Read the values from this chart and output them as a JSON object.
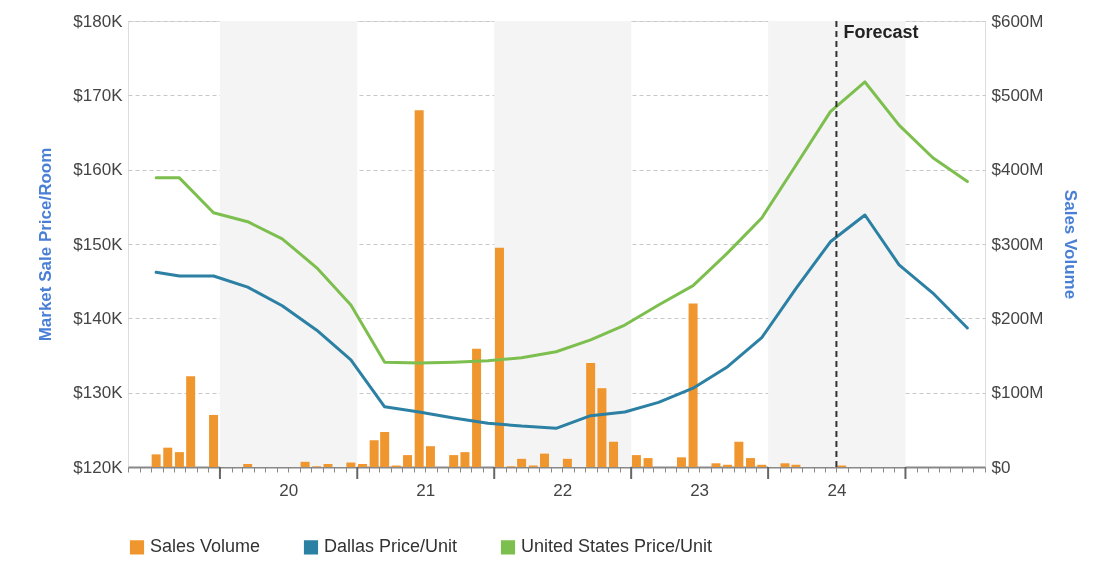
{
  "chart_data": {
    "type": "line",
    "ylabel": "Market Sale Price/Room",
    "y2label": "Sales Volume",
    "series": [
      {
        "name": "Sales Volume",
        "type": "bar",
        "axis": "y2",
        "color": "#f0962e",
        "x": [
          "2019-07-15",
          "2019-08-15",
          "2019-09-15",
          "2019-10-15",
          "2019-12-15",
          "2020-03-15",
          "2020-08-15",
          "2020-09-15",
          "2020-10-15",
          "2020-12-15",
          "2021-01-15",
          "2021-02-15",
          "2021-03-15",
          "2021-04-15",
          "2021-05-15",
          "2021-06-15",
          "2021-07-15",
          "2021-09-15",
          "2021-10-15",
          "2021-11-15",
          "2022-01-15",
          "2022-02-15",
          "2022-03-15",
          "2022-04-15",
          "2022-05-15",
          "2022-07-15",
          "2022-09-15",
          "2022-10-15",
          "2022-11-15",
          "2023-01-15",
          "2023-02-15",
          "2023-05-15",
          "2023-06-15",
          "2023-08-15",
          "2023-09-15",
          "2023-10-15",
          "2023-11-15",
          "2023-12-15",
          "2024-02-15",
          "2024-03-15",
          "2024-07-15"
        ],
        "values": [
          17,
          26,
          20,
          122,
          70,
          4,
          7,
          1,
          4,
          6,
          4,
          36,
          47,
          2,
          16,
          480,
          28,
          16,
          20,
          159,
          295,
          1,
          11,
          2,
          18,
          11,
          140,
          106,
          34,
          16,
          12,
          13,
          220,
          5,
          3,
          34,
          12,
          3,
          5,
          3,
          2
        ]
      },
      {
        "name": "Dallas Price/Unit",
        "color": "#2b80a3",
        "x": [
          "2019-07-15",
          "2019-09-15",
          "2019-12-15",
          "2020-03-15",
          "2020-06-15",
          "2020-09-15",
          "2020-12-15",
          "2021-03-15",
          "2021-06-15",
          "2021-09-15",
          "2021-12-15",
          "2022-03-15",
          "2022-06-15",
          "2022-09-15",
          "2022-12-15",
          "2023-03-15",
          "2023-06-15",
          "2023-09-15",
          "2023-12-15",
          "2024-03-15",
          "2024-06-15",
          "2024-09-15",
          "2024-12-15",
          "2025-03-15",
          "2025-06-15"
        ],
        "values": [
          146.2,
          145.7,
          145.7,
          144.2,
          141.7,
          138.4,
          134.4,
          128.1,
          127.4,
          126.6,
          125.9,
          125.5,
          125.2,
          126.9,
          127.4,
          128.7,
          130.6,
          133.5,
          137.4,
          144.0,
          150.3,
          153.9,
          147.2,
          143.4,
          138.7
        ]
      },
      {
        "name": "United States Price/Unit",
        "color": "#7dbf4e",
        "x": [
          "2019-07-15",
          "2019-09-15",
          "2019-12-15",
          "2020-03-15",
          "2020-06-15",
          "2020-09-15",
          "2020-12-15",
          "2021-03-15",
          "2021-06-15",
          "2021-09-15",
          "2021-12-15",
          "2022-03-15",
          "2022-06-15",
          "2022-09-15",
          "2022-12-15",
          "2023-03-15",
          "2023-06-15",
          "2023-09-15",
          "2023-12-15",
          "2024-03-15",
          "2024-06-15",
          "2024-09-15",
          "2024-12-15",
          "2025-03-15",
          "2025-06-15"
        ],
        "values": [
          158.9,
          158.9,
          154.2,
          153.0,
          150.7,
          146.8,
          141.8,
          134.1,
          134.0,
          134.1,
          134.3,
          134.7,
          135.5,
          137.1,
          139.1,
          141.8,
          144.4,
          148.8,
          153.5,
          160.6,
          167.8,
          171.8,
          166.0,
          161.6,
          158.4
        ]
      }
    ],
    "xlim": [
      "2019-05",
      "2025-08"
    ],
    "xticks": [
      {
        "value": "2019-05",
        "label": null
      },
      {
        "value": "2019-06",
        "label": null
      },
      {
        "value": "2019-07",
        "label": null
      },
      {
        "value": "2019-08",
        "label": null
      },
      {
        "value": "2019-09",
        "label": null
      },
      {
        "value": "2019-10",
        "label": null
      },
      {
        "value": "2019-11",
        "label": null
      },
      {
        "value": "2019-12",
        "label": null
      },
      {
        "value": "2020-01",
        "label": null
      },
      {
        "value": "2020-02",
        "label": null
      },
      {
        "value": "2020-03",
        "label": null
      },
      {
        "value": "2020-04",
        "label": null
      },
      {
        "value": "2020-05",
        "label": null
      },
      {
        "value": "2020-06",
        "label": null
      },
      {
        "value": "2020-07",
        "label": "20"
      },
      {
        "value": "2020-08",
        "label": null
      },
      {
        "value": "2020-09",
        "label": null
      },
      {
        "value": "2020-10",
        "label": null
      },
      {
        "value": "2020-11",
        "label": null
      },
      {
        "value": "2020-12",
        "label": null
      },
      {
        "value": "2021-01",
        "label": null
      },
      {
        "value": "2021-02",
        "label": null
      },
      {
        "value": "2021-03",
        "label": null
      },
      {
        "value": "2021-04",
        "label": null
      },
      {
        "value": "2021-05",
        "label": null
      },
      {
        "value": "2021-06",
        "label": null
      },
      {
        "value": "2021-07",
        "label": "21"
      },
      {
        "value": "2021-08",
        "label": null
      },
      {
        "value": "2021-09",
        "label": null
      },
      {
        "value": "2021-10",
        "label": null
      },
      {
        "value": "2021-11",
        "label": null
      },
      {
        "value": "2021-12",
        "label": null
      },
      {
        "value": "2022-01",
        "label": null
      },
      {
        "value": "2022-02",
        "label": null
      },
      {
        "value": "2022-03",
        "label": null
      },
      {
        "value": "2022-04",
        "label": null
      },
      {
        "value": "2022-05",
        "label": null
      },
      {
        "value": "2022-06",
        "label": null
      },
      {
        "value": "2022-07",
        "label": "22"
      },
      {
        "value": "2022-08",
        "label": null
      },
      {
        "value": "2022-09",
        "label": null
      },
      {
        "value": "2022-10",
        "label": null
      },
      {
        "value": "2022-11",
        "label": null
      },
      {
        "value": "2022-12",
        "label": null
      },
      {
        "value": "2023-01",
        "label": null
      },
      {
        "value": "2023-02",
        "label": null
      },
      {
        "value": "2023-03",
        "label": null
      },
      {
        "value": "2023-04",
        "label": null
      },
      {
        "value": "2023-05",
        "label": null
      },
      {
        "value": "2023-06",
        "label": null
      },
      {
        "value": "2023-07",
        "label": "23"
      },
      {
        "value": "2023-08",
        "label": null
      },
      {
        "value": "2023-09",
        "label": null
      },
      {
        "value": "2023-10",
        "label": null
      },
      {
        "value": "2023-11",
        "label": null
      },
      {
        "value": "2023-12",
        "label": null
      },
      {
        "value": "2024-01",
        "label": null
      },
      {
        "value": "2024-02",
        "label": null
      },
      {
        "value": "2024-03",
        "label": null
      },
      {
        "value": "2024-04",
        "label": null
      },
      {
        "value": "2024-05",
        "label": null
      },
      {
        "value": "2024-06",
        "label": null
      },
      {
        "value": "2024-07",
        "label": "24"
      },
      {
        "value": "2024-08",
        "label": null
      },
      {
        "value": "2024-09",
        "label": null
      },
      {
        "value": "2024-10",
        "label": null
      },
      {
        "value": "2024-11",
        "label": null
      },
      {
        "value": "2024-12",
        "label": null
      },
      {
        "value": "2025-01",
        "label": null
      },
      {
        "value": "2025-02",
        "label": null
      },
      {
        "value": "2025-03",
        "label": null
      },
      {
        "value": "2025-04",
        "label": null
      },
      {
        "value": "2025-05",
        "label": null
      },
      {
        "value": "2025-06",
        "label": null
      },
      {
        "value": "2025-07",
        "label": null
      },
      {
        "value": "2025-08",
        "label": null
      }
    ],
    "ylim": [
      120,
      180
    ],
    "yticks": [
      {
        "value": 120,
        "label": "$120K"
      },
      {
        "value": 130,
        "label": "$130K"
      },
      {
        "value": 140,
        "label": "$140K"
      },
      {
        "value": 150,
        "label": "$150K"
      },
      {
        "value": 160,
        "label": "$160K"
      },
      {
        "value": 170,
        "label": "$170K"
      },
      {
        "value": 180,
        "label": "$180K"
      }
    ],
    "y2lim": [
      0,
      600
    ],
    "y2ticks": [
      {
        "value": 0,
        "label": "$0"
      },
      {
        "value": 100,
        "label": "$100M"
      },
      {
        "value": 200,
        "label": "$200M"
      },
      {
        "value": 300,
        "label": "$300M"
      },
      {
        "value": 400,
        "label": "$400M"
      },
      {
        "value": 500,
        "label": "$500M"
      },
      {
        "value": 600,
        "label": "$600M"
      }
    ],
    "bands": [
      {
        "axis": "x",
        "from": "2020-01",
        "to": "2021-01",
        "color": "#f4f4f4"
      },
      {
        "axis": "x",
        "from": "2022-01",
        "to": "2023-01",
        "color": "#f4f4f4"
      },
      {
        "axis": "x",
        "from": "2024-01",
        "to": "2025-01",
        "color": "#f4f4f4"
      }
    ],
    "ref_lines": [
      {
        "axis": "x",
        "value": "2024-07",
        "label": "Forecast",
        "color": "#333333",
        "line_style": "dashed"
      }
    ],
    "grid": "y",
    "legend": "bottom"
  }
}
